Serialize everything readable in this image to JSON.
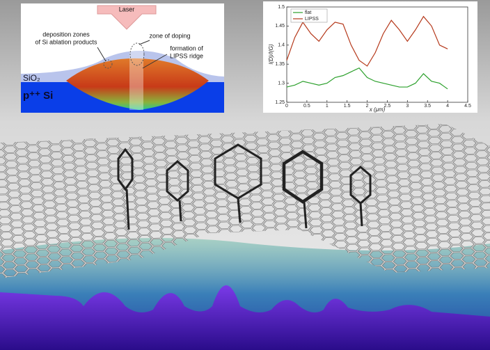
{
  "diagram": {
    "laser": "Laser",
    "deposition_zones": [
      "deposition zones",
      "of Si ablation products"
    ],
    "zone_of_doping": "zone of doping",
    "lipss_ridge": [
      "formation of",
      "LIPSS ridge"
    ],
    "sio2": "SiO₂",
    "si": "p⁺⁺ Si"
  },
  "chart_data": {
    "type": "line",
    "xlabel": "x (μm)",
    "ylabel": "I(D)/I(G)",
    "x": [
      0,
      0.2,
      0.4,
      0.6,
      0.8,
      1.0,
      1.2,
      1.4,
      1.6,
      1.8,
      2.0,
      2.2,
      2.4,
      2.6,
      2.8,
      3.0,
      3.2,
      3.4,
      3.6,
      3.8,
      4.0
    ],
    "series": [
      {
        "name": "flat",
        "color": "#2ca02c",
        "values": [
          1.29,
          1.295,
          1.305,
          1.3,
          1.295,
          1.3,
          1.315,
          1.32,
          1.33,
          1.34,
          1.315,
          1.305,
          1.3,
          1.295,
          1.29,
          1.29,
          1.3,
          1.325,
          1.305,
          1.3,
          1.285
        ]
      },
      {
        "name": "LIPSS",
        "color": "#b5381a",
        "values": [
          1.36,
          1.42,
          1.46,
          1.43,
          1.41,
          1.44,
          1.46,
          1.455,
          1.4,
          1.36,
          1.345,
          1.38,
          1.43,
          1.465,
          1.44,
          1.41,
          1.44,
          1.475,
          1.45,
          1.4,
          1.39
        ]
      }
    ],
    "xlim": [
      0,
      4.5
    ],
    "ylim": [
      1.25,
      1.5
    ],
    "xticks": [
      0,
      0.5,
      1,
      1.5,
      2,
      2.5,
      3,
      3.5,
      4,
      4.5
    ],
    "yticks": [
      1.25,
      1.3,
      1.35,
      1.4,
      1.45,
      1.5
    ],
    "legend": "upper left",
    "grid": false
  }
}
